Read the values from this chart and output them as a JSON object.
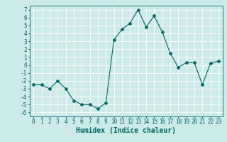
{
  "x": [
    0,
    1,
    2,
    3,
    4,
    5,
    6,
    7,
    8,
    9,
    10,
    11,
    12,
    13,
    14,
    15,
    16,
    17,
    18,
    19,
    20,
    21,
    22,
    23
  ],
  "y": [
    -2.5,
    -2.5,
    -3,
    -2,
    -3,
    -4.5,
    -5,
    -5,
    -5.5,
    -4.8,
    3.2,
    4.5,
    5.3,
    7.0,
    4.8,
    6.2,
    4.2,
    1.5,
    -0.3,
    0.3,
    0.3,
    -2.5,
    0.2,
    0.5
  ],
  "line_color": "#006666",
  "marker": "D",
  "marker_size": 2,
  "bg_color": "#cceae7",
  "grid_color": "#ffffff",
  "xlabel": "Humidex (Indice chaleur)",
  "xlim": [
    -0.5,
    23.5
  ],
  "ylim": [
    -6.5,
    7.5
  ],
  "yticks": [
    -6,
    -5,
    -4,
    -3,
    -2,
    -1,
    0,
    1,
    2,
    3,
    4,
    5,
    6,
    7
  ],
  "xticks": [
    0,
    1,
    2,
    3,
    4,
    5,
    6,
    7,
    8,
    9,
    10,
    11,
    12,
    13,
    14,
    15,
    16,
    17,
    18,
    19,
    20,
    21,
    22,
    23
  ],
  "tick_label_size": 5.5,
  "xlabel_size": 7
}
